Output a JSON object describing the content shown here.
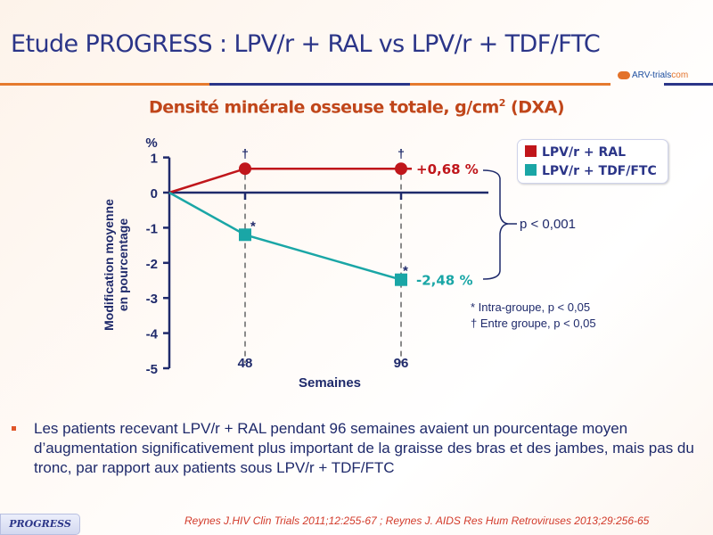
{
  "slide": {
    "title": "Etude PROGRESS : LPV/r + RAL vs LPV/r + TDF/FTC",
    "logo_text": "ARV-trials",
    "logo_suffix": "com",
    "subtitle_main": "Densité minérale osseuse totale, g/cm",
    "subtitle_sup": "2",
    "subtitle_end": " (DXA)",
    "bullet": "Les patients recevant LPV/r + RAL pendant 96 semaines avaient un pourcentage moyen d’augmentation significativement plus important de la graisse des bras et des jambes, mais pas du tronc, par rapport aux patients sous LPV/r + TDF/FTC",
    "badge": "PROGRESS",
    "reference": "Reynes J.HIV Clin Trials 2011;12:255-67 ; Reynes J. AIDS Res Hum Retroviruses 2013;29:256-65",
    "colors": {
      "title": "#2b3588",
      "subtitle": "#c0461a",
      "ral": "#c0161b",
      "tdf": "#1aa6a6",
      "axis": "#1f2a6b",
      "reference": "#d23a2a"
    }
  },
  "chart_data": {
    "type": "line",
    "title": "Densité minérale osseuse totale, g/cm2 (DXA)",
    "xlabel": "Semaines",
    "ylabel": "Modification moyenne en pourcentage",
    "yunit": "%",
    "ylim": [
      -5,
      1
    ],
    "yticks": [
      "1",
      "0",
      "-1",
      "-2",
      "-3",
      "-4",
      "-5"
    ],
    "yticks_values": [
      1,
      0,
      -1,
      -2,
      -3,
      -4,
      -5
    ],
    "x": [
      0,
      48,
      96
    ],
    "xtick_labels": [
      "48",
      "96"
    ],
    "series": [
      {
        "name": "LPV/r + RAL",
        "color": "#c0161b",
        "marker": "circle",
        "values": [
          0,
          0.68,
          0.68
        ],
        "end_label": "+0,68 %"
      },
      {
        "name": "LPV/r + TDF/FTC",
        "color": "#1aa6a6",
        "marker": "square",
        "values": [
          0,
          -1.2,
          -2.48
        ],
        "end_label": "-2,48 %"
      }
    ],
    "annotations": {
      "dagger": "†",
      "star": "*",
      "pvalue": "p < 0,001",
      "note_intra": "* Intra-groupe, p < 0,05",
      "note_entre": "† Entre groupe, p < 0,05"
    },
    "legend_position": "top-right",
    "grid": false
  }
}
